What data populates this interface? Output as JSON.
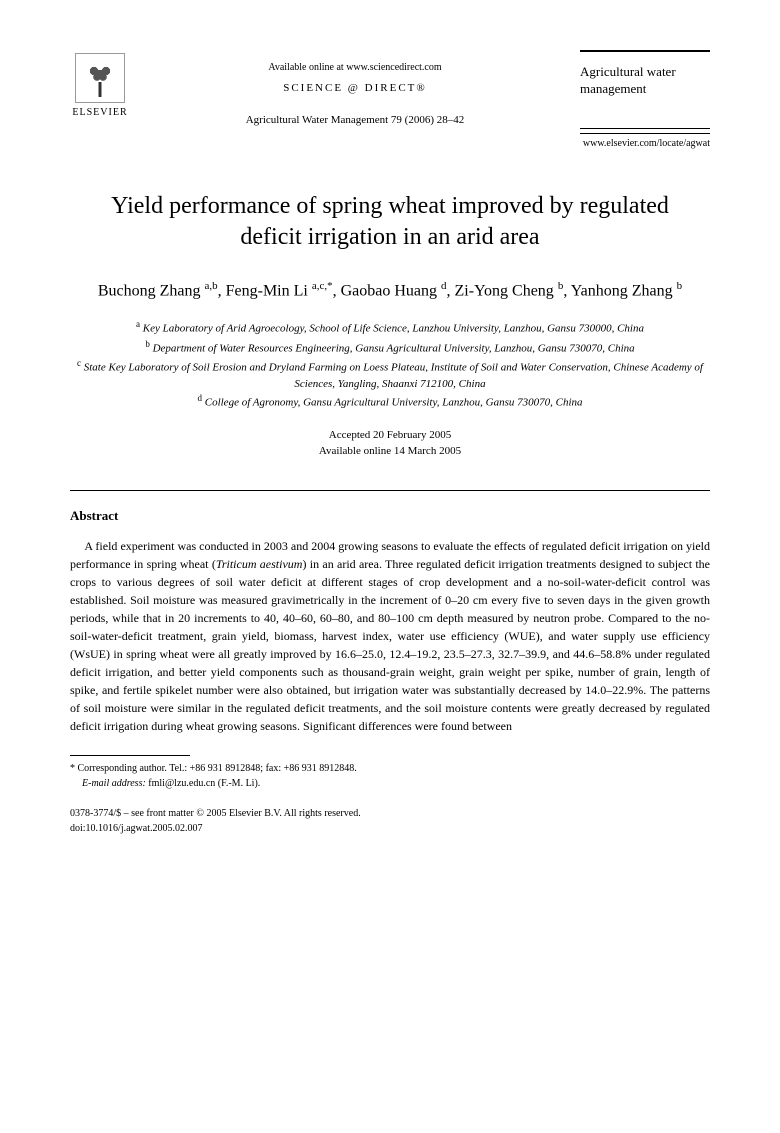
{
  "header": {
    "publisher": "ELSEVIER",
    "available_online": "Available online at www.sciencedirect.com",
    "science_direct": "SCIENCE @ DIRECT®",
    "journal_citation": "Agricultural Water Management 79 (2006) 28–42",
    "journal_title": "Agricultural water management",
    "journal_url": "www.elsevier.com/locate/agwat"
  },
  "article": {
    "title": "Yield performance of spring wheat improved by regulated deficit irrigation in an arid area",
    "authors_html": "Buchong Zhang <sup>a,b</sup>, Feng-Min Li <sup>a,c,*</sup>, Gaobao Huang <sup>d</sup>, Zi-Yong Cheng <sup>b</sup>, Yanhong Zhang <sup>b</sup>",
    "affiliations": [
      {
        "sup": "a",
        "text": "Key Laboratory of Arid Agroecology, School of Life Science, Lanzhou University, Lanzhou, Gansu 730000, China"
      },
      {
        "sup": "b",
        "text": "Department of Water Resources Engineering, Gansu Agricultural University, Lanzhou, Gansu 730070, China"
      },
      {
        "sup": "c",
        "text": "State Key Laboratory of Soil Erosion and Dryland Farming on Loess Plateau, Institute of Soil and Water Conservation, Chinese Academy of Sciences, Yangling, Shaanxi 712100, China"
      },
      {
        "sup": "d",
        "text": "College of Agronomy, Gansu Agricultural University, Lanzhou, Gansu 730070, China"
      }
    ],
    "accepted": "Accepted 20 February 2005",
    "available": "Available online 14 March 2005"
  },
  "abstract": {
    "heading": "Abstract",
    "text": "A field experiment was conducted in 2003 and 2004 growing seasons to evaluate the effects of regulated deficit irrigation on yield performance in spring wheat (Triticum aestivum) in an arid area. Three regulated deficit irrigation treatments designed to subject the crops to various degrees of soil water deficit at different stages of crop development and a no-soil-water-deficit control was established. Soil moisture was measured gravimetrically in the increment of 0–20 cm every five to seven days in the given growth periods, while that in 20 increments to 40, 40–60, 60–80, and 80–100 cm depth measured by neutron probe. Compared to the no-soil-water-deficit treatment, grain yield, biomass, harvest index, water use efficiency (WUE), and water supply use efficiency (WsUE) in spring wheat were all greatly improved by 16.6–25.0, 12.4–19.2, 23.5–27.3, 32.7–39.9, and 44.6–58.8% under regulated deficit irrigation, and better yield components such as thousand-grain weight, grain weight per spike, number of grain, length of spike, and fertile spikelet number were also obtained, but irrigation water was substantially decreased by 14.0–22.9%. The patterns of soil moisture were similar in the regulated deficit treatments, and the soil moisture contents were greatly decreased by regulated deficit irrigation during wheat growing seasons. Significant differences were found between"
  },
  "footnote": {
    "corresponding": "* Corresponding author. Tel.: +86 931 8912848; fax: +86 931 8912848.",
    "email_label": "E-mail address:",
    "email": "fmli@lzu.edu.cn (F.-M. Li)."
  },
  "footer": {
    "copyright": "0378-3774/$ – see front matter © 2005 Elsevier B.V. All rights reserved.",
    "doi": "doi:10.1016/j.agwat.2005.02.007"
  }
}
